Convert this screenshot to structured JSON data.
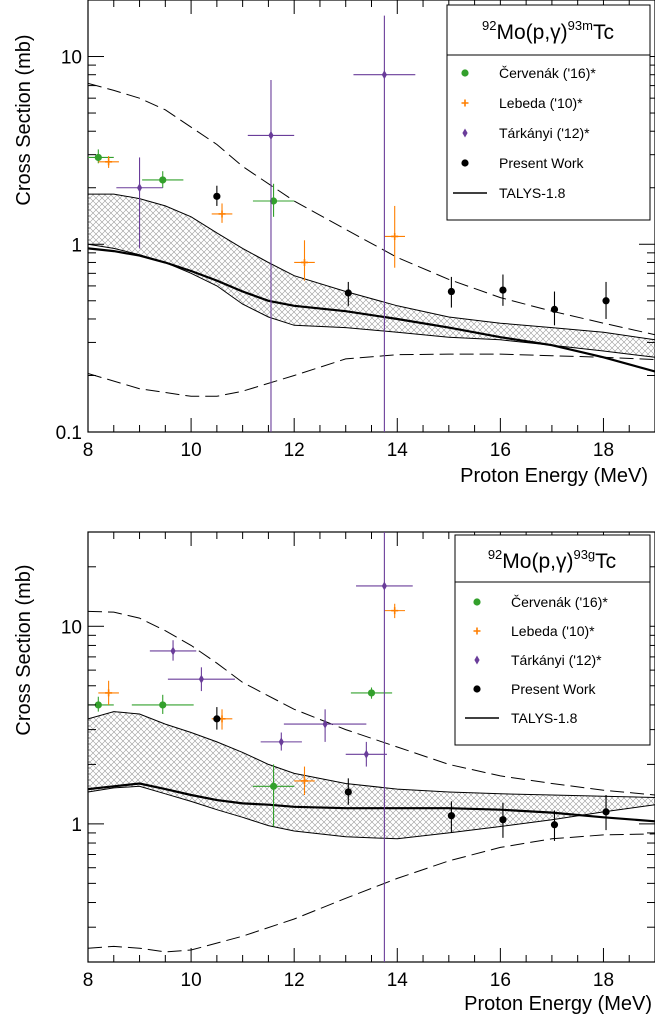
{
  "chart_data": [
    {
      "type": "scatter",
      "title_parts": {
        "pre_sup": "92",
        "main": "Mo(p,γ)",
        "post_sup": "93m",
        "end": "Tc"
      },
      "xlabel": "Proton Energy (MeV)",
      "ylabel": "Cross Section (mb)",
      "x_scale": "linear",
      "y_scale": "log",
      "xlim": [
        8,
        19
      ],
      "ylim": [
        0.1,
        20
      ],
      "x_ticks": [
        8,
        10,
        12,
        14,
        16,
        18
      ],
      "x_tick_labels": [
        "8",
        "10",
        "12",
        "14",
        "16",
        "18"
      ],
      "y_ticks": [
        0.1,
        1,
        10
      ],
      "y_tick_labels": [
        "0.1",
        "1",
        "10"
      ],
      "legend_position": "top-right",
      "legend": [
        {
          "label": "Červenák ('16)*",
          "marker": "dot",
          "color": "#33a02c"
        },
        {
          "label": "Lebeda ('10)*",
          "marker": "plus",
          "color": "#ff7f00"
        },
        {
          "label": "Tárkányi ('12)*",
          "marker": "diamond",
          "color": "#6a3d9a"
        },
        {
          "label": "Present Work",
          "marker": "dot",
          "color": "#000000"
        },
        {
          "label": "TALYS-1.8",
          "marker": "line",
          "color": "#000000"
        }
      ],
      "series": [
        {
          "legend_index": 0,
          "points": [
            {
              "x": 8.2,
              "y": 2.9,
              "xerr": 0.3,
              "ylo": 2.7,
              "yhi": 3.2
            },
            {
              "x": 9.45,
              "y": 2.2,
              "xerr": 0.4,
              "ylo": 2.0,
              "yhi": 2.45
            },
            {
              "x": 11.6,
              "y": 1.7,
              "xerr": 0.4,
              "ylo": 1.4,
              "yhi": 2.1
            }
          ]
        },
        {
          "legend_index": 1,
          "points": [
            {
              "x": 8.4,
              "y": 2.75,
              "xerr": 0.2,
              "ylo": 2.55,
              "yhi": 2.95
            },
            {
              "x": 10.6,
              "y": 1.45,
              "xerr": 0.2,
              "ylo": 1.3,
              "yhi": 1.65
            },
            {
              "x": 12.2,
              "y": 0.8,
              "xerr": 0.2,
              "ylo": 0.64,
              "yhi": 1.05
            },
            {
              "x": 13.95,
              "y": 1.1,
              "xerr": 0.2,
              "ylo": 0.75,
              "yhi": 1.6
            }
          ]
        },
        {
          "legend_index": 2,
          "points": [
            {
              "x": 9.0,
              "y": 2.0,
              "xerr": 0.45,
              "ylo": 0.95,
              "yhi": 2.9
            },
            {
              "x": 11.55,
              "y": 3.8,
              "xerr": 0.45,
              "ylo": 0.1,
              "yhi": 7.5
            },
            {
              "x": 13.75,
              "y": 8.0,
              "xerr": 0.6,
              "ylo": 0.1,
              "yhi": 16.5
            }
          ]
        },
        {
          "legend_index": 3,
          "points": [
            {
              "x": 10.5,
              "y": 1.8,
              "xerr": 0,
              "ylo": 1.6,
              "yhi": 2.05
            },
            {
              "x": 13.05,
              "y": 0.55,
              "xerr": 0,
              "ylo": 0.47,
              "yhi": 0.63
            },
            {
              "x": 15.05,
              "y": 0.56,
              "xerr": 0,
              "ylo": 0.46,
              "yhi": 0.67
            },
            {
              "x": 16.05,
              "y": 0.57,
              "xerr": 0,
              "ylo": 0.47,
              "yhi": 0.69
            },
            {
              "x": 17.05,
              "y": 0.45,
              "xerr": 0,
              "ylo": 0.37,
              "yhi": 0.56
            },
            {
              "x": 18.05,
              "y": 0.5,
              "xerr": 0,
              "ylo": 0.4,
              "yhi": 0.63
            }
          ]
        }
      ],
      "talys_line": {
        "x": [
          8.0,
          8.5,
          9.0,
          9.5,
          10.0,
          10.5,
          11.0,
          11.5,
          12.0,
          13.0,
          14.0,
          15.0,
          16.0,
          17.0,
          18.0,
          19.0
        ],
        "y": [
          0.95,
          0.92,
          0.87,
          0.8,
          0.72,
          0.64,
          0.56,
          0.5,
          0.47,
          0.44,
          0.4,
          0.36,
          0.32,
          0.29,
          0.25,
          0.21
        ]
      },
      "band_upper": {
        "x": [
          8.0,
          8.5,
          9.0,
          9.5,
          10.0,
          10.5,
          11.0,
          11.5,
          12.0,
          13.0,
          14.0,
          15.0,
          16.0,
          17.0,
          18.0,
          19.0
        ],
        "y": [
          1.85,
          1.85,
          1.75,
          1.6,
          1.4,
          1.15,
          0.95,
          0.8,
          0.68,
          0.56,
          0.47,
          0.41,
          0.38,
          0.36,
          0.34,
          0.31
        ]
      },
      "band_lower": {
        "x": [
          8.0,
          8.5,
          9.0,
          9.5,
          10.0,
          10.5,
          11.0,
          11.5,
          12.0,
          13.0,
          14.0,
          15.0,
          16.0,
          17.0,
          18.0,
          19.0
        ],
        "y": [
          1.0,
          0.95,
          0.88,
          0.8,
          0.7,
          0.6,
          0.48,
          0.41,
          0.37,
          0.36,
          0.34,
          0.32,
          0.31,
          0.29,
          0.27,
          0.25
        ]
      },
      "dashed_upper": {
        "x": [
          8.0,
          8.5,
          9.0,
          9.5,
          10.0,
          10.5,
          11.0,
          12.0,
          13.0,
          14.0,
          15.0,
          16.0,
          17.0,
          18.0,
          19.0
        ],
        "y": [
          7.2,
          6.6,
          6.0,
          5.2,
          4.2,
          3.4,
          2.6,
          1.7,
          1.2,
          0.85,
          0.65,
          0.52,
          0.44,
          0.38,
          0.33
        ]
      },
      "dashed_lower": {
        "x": [
          8.0,
          9.0,
          10.0,
          10.5,
          11.0,
          12.0,
          13.0,
          14.0,
          15.0,
          16.0,
          17.0,
          18.0,
          19.0
        ],
        "y": [
          0.205,
          0.17,
          0.155,
          0.155,
          0.165,
          0.2,
          0.245,
          0.258,
          0.26,
          0.26,
          0.255,
          0.25,
          0.243
        ]
      }
    },
    {
      "type": "scatter",
      "title_parts": {
        "pre_sup": "92",
        "main": "Mo(p,γ)",
        "post_sup": "93g",
        "end": "Tc"
      },
      "xlabel": "Proton Energy (MeV)",
      "ylabel": "Cross Section (mb)",
      "x_scale": "linear",
      "y_scale": "log",
      "xlim": [
        8,
        19
      ],
      "ylim": [
        0.2,
        30
      ],
      "x_ticks": [
        8,
        10,
        12,
        14,
        16,
        18
      ],
      "x_tick_labels": [
        "8",
        "10",
        "12",
        "14",
        "16",
        "18"
      ],
      "y_ticks": [
        1,
        10
      ],
      "y_tick_labels": [
        "1",
        "10"
      ],
      "legend_position": "top-right",
      "legend": [
        {
          "label": "Červenák ('16)*",
          "marker": "dot",
          "color": "#33a02c"
        },
        {
          "label": "Lebeda ('10)*",
          "marker": "plus",
          "color": "#ff7f00"
        },
        {
          "label": "Tárkányi ('12)*",
          "marker": "diamond",
          "color": "#6a3d9a"
        },
        {
          "label": "Present Work",
          "marker": "dot",
          "color": "#000000"
        },
        {
          "label": "TALYS-1.8",
          "marker": "line",
          "color": "#000000"
        }
      ],
      "series": [
        {
          "legend_index": 0,
          "points": [
            {
              "x": 8.2,
              "y": 4.0,
              "xerr": 0.3,
              "ylo": 3.7,
              "yhi": 4.4
            },
            {
              "x": 9.45,
              "y": 4.0,
              "xerr": 0.6,
              "ylo": 3.6,
              "yhi": 4.5
            },
            {
              "x": 11.6,
              "y": 1.55,
              "xerr": 0.4,
              "ylo": 0.97,
              "yhi": 2.0
            },
            {
              "x": 13.5,
              "y": 4.6,
              "xerr": 0.4,
              "ylo": 4.3,
              "yhi": 4.9
            }
          ]
        },
        {
          "legend_index": 1,
          "points": [
            {
              "x": 8.4,
              "y": 4.6,
              "xerr": 0.2,
              "ylo": 4.0,
              "yhi": 5.3
            },
            {
              "x": 10.6,
              "y": 3.4,
              "xerr": 0.2,
              "ylo": 3.0,
              "yhi": 3.8
            },
            {
              "x": 12.2,
              "y": 1.65,
              "xerr": 0.2,
              "ylo": 1.4,
              "yhi": 1.95
            },
            {
              "x": 13.95,
              "y": 12.0,
              "xerr": 0.2,
              "ylo": 11.0,
              "yhi": 13.0
            }
          ]
        },
        {
          "legend_index": 2,
          "points": [
            {
              "x": 9.65,
              "y": 7.5,
              "xerr": 0.45,
              "ylo": 6.7,
              "yhi": 8.5
            },
            {
              "x": 10.2,
              "y": 5.4,
              "xerr": 0.65,
              "ylo": 4.7,
              "yhi": 6.2
            },
            {
              "x": 11.75,
              "y": 2.6,
              "xerr": 0.4,
              "ylo": 2.35,
              "yhi": 2.9
            },
            {
              "x": 12.6,
              "y": 3.2,
              "xerr": 0.8,
              "ylo": 2.6,
              "yhi": 3.8
            },
            {
              "x": 13.4,
              "y": 2.25,
              "xerr": 0.4,
              "ylo": 1.95,
              "yhi": 2.6
            },
            {
              "x": 13.75,
              "y": 16.0,
              "xerr": 0.55,
              "ylo": 0.2,
              "yhi": 30.0
            }
          ]
        },
        {
          "legend_index": 3,
          "points": [
            {
              "x": 10.5,
              "y": 3.4,
              "xerr": 0,
              "ylo": 3.0,
              "yhi": 3.9
            },
            {
              "x": 13.05,
              "y": 1.45,
              "xerr": 0,
              "ylo": 1.25,
              "yhi": 1.7
            },
            {
              "x": 15.05,
              "y": 1.1,
              "xerr": 0,
              "ylo": 0.9,
              "yhi": 1.3
            },
            {
              "x": 16.05,
              "y": 1.05,
              "xerr": 0,
              "ylo": 0.85,
              "yhi": 1.28
            },
            {
              "x": 17.05,
              "y": 0.99,
              "xerr": 0,
              "ylo": 0.82,
              "yhi": 1.17
            },
            {
              "x": 18.05,
              "y": 1.15,
              "xerr": 0,
              "ylo": 0.93,
              "yhi": 1.4
            }
          ]
        }
      ],
      "talys_line": {
        "x": [
          8.0,
          8.5,
          9.0,
          9.5,
          10.0,
          10.5,
          11.0,
          11.5,
          12.0,
          13.0,
          14.0,
          15.0,
          16.0,
          17.0,
          18.0,
          19.0
        ],
        "y": [
          1.5,
          1.55,
          1.6,
          1.5,
          1.4,
          1.32,
          1.27,
          1.25,
          1.22,
          1.2,
          1.2,
          1.2,
          1.18,
          1.14,
          1.08,
          1.03
        ]
      },
      "band_upper": {
        "x": [
          8.0,
          8.5,
          9.0,
          9.5,
          10.0,
          10.5,
          11.0,
          11.5,
          12.0,
          13.0,
          14.0,
          15.0,
          16.0,
          17.0,
          18.0,
          19.0
        ],
        "y": [
          3.4,
          3.7,
          3.6,
          3.2,
          2.9,
          2.6,
          2.3,
          2.0,
          1.8,
          1.6,
          1.5,
          1.45,
          1.42,
          1.4,
          1.38,
          1.36
        ]
      },
      "band_lower": {
        "x": [
          8.0,
          8.5,
          9.0,
          9.5,
          10.0,
          10.5,
          11.0,
          11.5,
          12.0,
          13.0,
          14.0,
          15.0,
          16.0,
          17.0,
          18.0,
          19.0
        ],
        "y": [
          1.45,
          1.52,
          1.55,
          1.42,
          1.3,
          1.18,
          1.08,
          0.98,
          0.92,
          0.86,
          0.84,
          0.9,
          0.97,
          1.05,
          1.15,
          1.25
        ]
      },
      "dashed_upper": {
        "x": [
          8.0,
          8.5,
          9.0,
          9.5,
          10.0,
          10.5,
          11.0,
          12.0,
          13.0,
          14.0,
          15.0,
          16.0,
          17.0,
          18.0,
          19.0
        ],
        "y": [
          11.9,
          11.8,
          11.0,
          9.5,
          8.0,
          6.5,
          5.2,
          3.8,
          3.0,
          2.45,
          2.0,
          1.75,
          1.6,
          1.48,
          1.4
        ]
      },
      "dashed_lower": {
        "x": [
          8.0,
          8.5,
          9.0,
          9.5,
          10.0,
          11.0,
          12.0,
          13.0,
          14.0,
          15.0,
          16.0,
          17.0,
          18.0,
          19.0
        ],
        "y": [
          0.235,
          0.24,
          0.235,
          0.225,
          0.23,
          0.27,
          0.33,
          0.42,
          0.53,
          0.65,
          0.76,
          0.84,
          0.88,
          0.89
        ]
      }
    }
  ]
}
